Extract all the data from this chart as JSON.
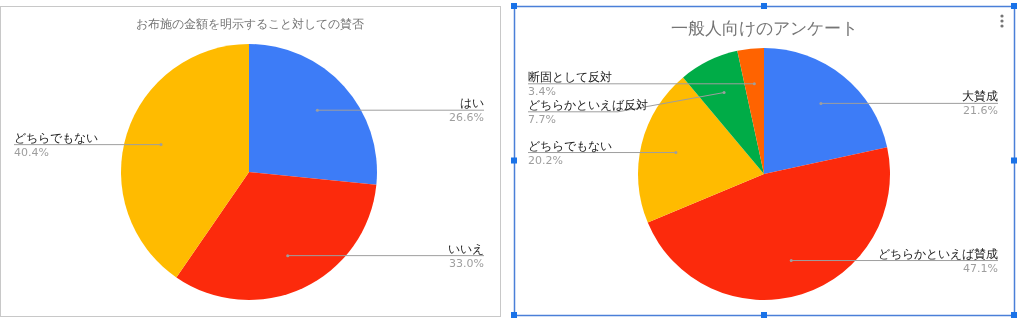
{
  "chart_data": [
    {
      "type": "pie",
      "title": "お布施の金額を明示すること対しての賛否",
      "categories": [
        "はい",
        "いいえ",
        "どちらでもない"
      ],
      "values": [
        26.6,
        33.0,
        40.4
      ],
      "colors": [
        "#3d7cf7",
        "#fc2a0c",
        "#ffbb00"
      ],
      "value_labels": [
        "26.6%",
        "33.0%",
        "40.4%"
      ]
    },
    {
      "type": "pie",
      "title": "一般人向けのアンケート",
      "categories": [
        "大賛成",
        "どちらかといえば賛成",
        "どちらでもない",
        "どちらかといえば反対",
        "断固として反対"
      ],
      "values": [
        21.6,
        47.1,
        20.2,
        7.7,
        3.4
      ],
      "colors": [
        "#3d7cf7",
        "#fc2a0c",
        "#ffbb00",
        "#00ac47",
        "#ff6300"
      ],
      "value_labels": [
        "21.6%",
        "47.1%",
        "20.2%",
        "7.7%",
        "3.4%"
      ]
    }
  ]
}
